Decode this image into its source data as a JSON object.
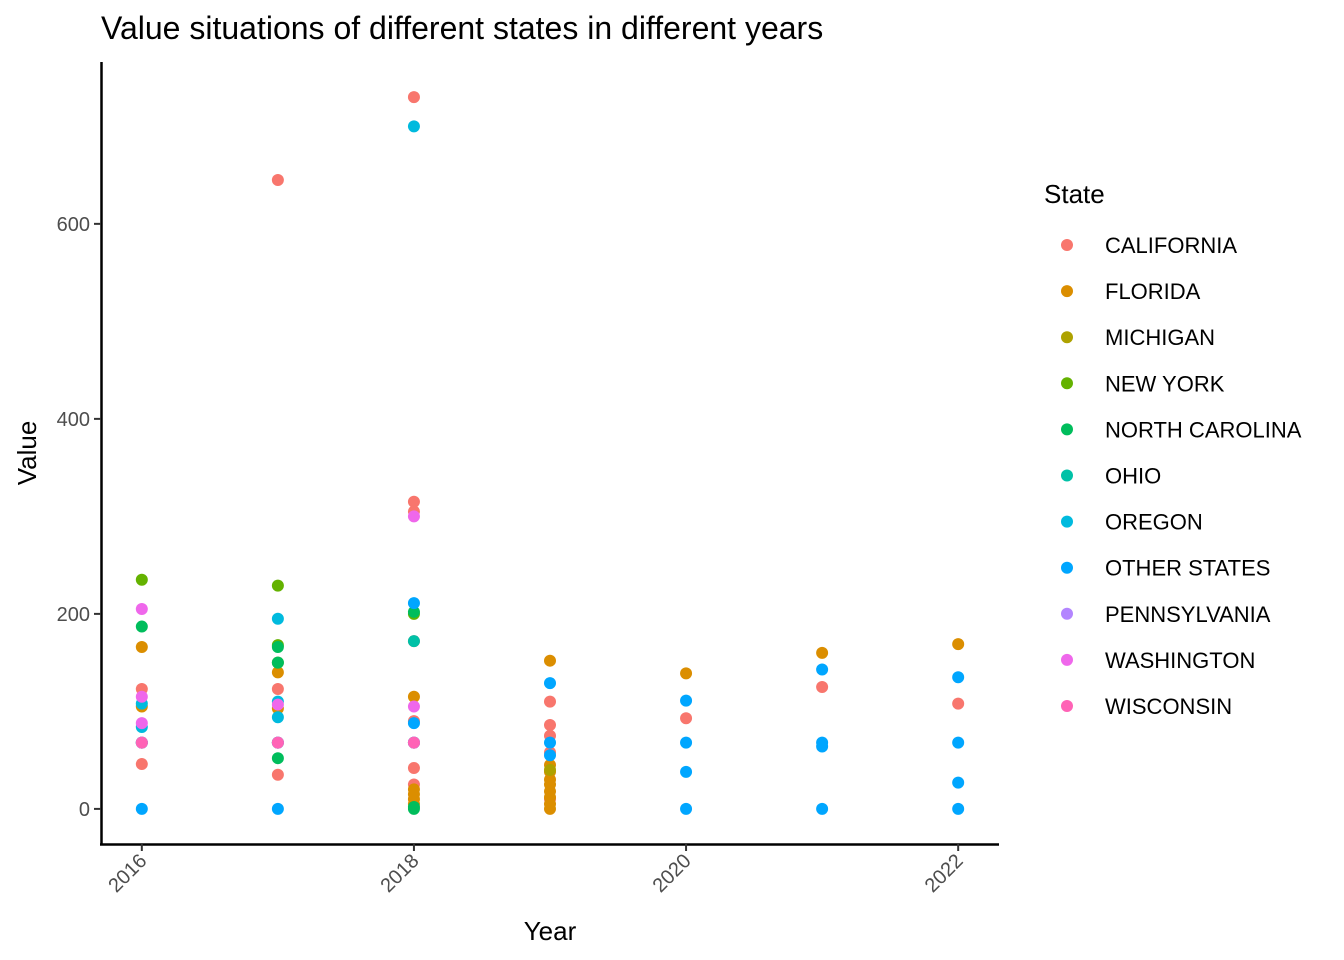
{
  "chart_data": {
    "type": "scatter",
    "title": "Value situations of different states in different years",
    "xlabel": "Year",
    "ylabel": "Value",
    "xlim": [
      2015.7,
      2022.3
    ],
    "ylim": [
      -36,
      766
    ],
    "xticks": [
      2016,
      2018,
      2020,
      2022
    ],
    "xtick_labels": [
      "2016",
      "2018",
      "2020",
      "2022"
    ],
    "yticks": [
      0,
      200,
      400,
      600
    ],
    "ytick_labels": [
      "0",
      "200",
      "400",
      "600"
    ],
    "grid": false,
    "legend": {
      "title": "State",
      "placement": "right"
    },
    "series": [
      {
        "name": "CALIFORNIA",
        "color": "#F8766D",
        "points": [
          [
            2016,
            123
          ],
          [
            2016,
            46
          ],
          [
            2017,
            645
          ],
          [
            2017,
            123
          ],
          [
            2017,
            35
          ],
          [
            2018,
            730
          ],
          [
            2018,
            315
          ],
          [
            2018,
            305
          ],
          [
            2018,
            172
          ],
          [
            2018,
            90
          ],
          [
            2018,
            42
          ],
          [
            2018,
            25
          ],
          [
            2019,
            110
          ],
          [
            2019,
            86
          ],
          [
            2019,
            75
          ],
          [
            2019,
            58
          ],
          [
            2019,
            10
          ],
          [
            2020,
            93
          ],
          [
            2021,
            125
          ],
          [
            2022,
            108
          ]
        ]
      },
      {
        "name": "FLORIDA",
        "color": "#DB8E00",
        "points": [
          [
            2016,
            166
          ],
          [
            2016,
            105
          ],
          [
            2017,
            140
          ],
          [
            2017,
            103
          ],
          [
            2018,
            115
          ],
          [
            2018,
            20
          ],
          [
            2018,
            15
          ],
          [
            2018,
            10
          ],
          [
            2018,
            5
          ],
          [
            2019,
            152
          ],
          [
            2019,
            45
          ],
          [
            2019,
            38
          ],
          [
            2019,
            30
          ],
          [
            2019,
            25
          ],
          [
            2019,
            18
          ],
          [
            2019,
            12
          ],
          [
            2019,
            5
          ],
          [
            2019,
            0
          ],
          [
            2020,
            139
          ],
          [
            2021,
            160
          ],
          [
            2022,
            169
          ]
        ]
      },
      {
        "name": "MICHIGAN",
        "color": "#AEA200",
        "points": [
          [
            2016,
            68
          ],
          [
            2017,
            68
          ],
          [
            2018,
            68
          ],
          [
            2019,
            40
          ]
        ]
      },
      {
        "name": "NEW YORK",
        "color": "#64B200",
        "points": [
          [
            2016,
            235
          ],
          [
            2017,
            229
          ],
          [
            2017,
            168
          ],
          [
            2017,
            150
          ],
          [
            2018,
            200
          ]
        ]
      },
      {
        "name": "NORTH CAROLINA",
        "color": "#00BD5C",
        "points": [
          [
            2016,
            187
          ],
          [
            2017,
            166
          ],
          [
            2017,
            150
          ],
          [
            2017,
            52
          ],
          [
            2018,
            202
          ],
          [
            2018,
            2
          ],
          [
            2018,
            0
          ]
        ]
      },
      {
        "name": "OHIO",
        "color": "#00C1A7",
        "points": [
          [
            2016,
            68
          ],
          [
            2017,
            68
          ],
          [
            2018,
            172
          ],
          [
            2018,
            68
          ]
        ]
      },
      {
        "name": "OREGON",
        "color": "#00BADE",
        "points": [
          [
            2016,
            108
          ],
          [
            2016,
            84
          ],
          [
            2017,
            195
          ],
          [
            2017,
            110
          ],
          [
            2017,
            94
          ],
          [
            2018,
            700
          ]
        ]
      },
      {
        "name": "OTHER STATES",
        "color": "#00A6FF",
        "points": [
          [
            2016,
            68
          ],
          [
            2016,
            0
          ],
          [
            2017,
            68
          ],
          [
            2017,
            0
          ],
          [
            2018,
            211
          ],
          [
            2018,
            88
          ],
          [
            2018,
            68
          ],
          [
            2019,
            129
          ],
          [
            2019,
            68
          ],
          [
            2019,
            55
          ],
          [
            2020,
            111
          ],
          [
            2020,
            68
          ],
          [
            2020,
            38
          ],
          [
            2020,
            0
          ],
          [
            2021,
            143
          ],
          [
            2021,
            68
          ],
          [
            2021,
            64
          ],
          [
            2021,
            0
          ],
          [
            2022,
            135
          ],
          [
            2022,
            68
          ],
          [
            2022,
            27
          ],
          [
            2022,
            0
          ]
        ]
      },
      {
        "name": "PENNSYLVANIA",
        "color": "#B385FF",
        "points": [
          [
            2016,
            68
          ],
          [
            2017,
            68
          ],
          [
            2018,
            68
          ]
        ]
      },
      {
        "name": "WASHINGTON",
        "color": "#EF67EB",
        "points": [
          [
            2016,
            205
          ],
          [
            2016,
            115
          ],
          [
            2016,
            88
          ],
          [
            2017,
            107
          ],
          [
            2018,
            300
          ],
          [
            2018,
            105
          ]
        ]
      },
      {
        "name": "WISCONSIN",
        "color": "#FF63B6",
        "points": [
          [
            2016,
            68
          ],
          [
            2017,
            68
          ],
          [
            2018,
            68
          ]
        ]
      }
    ]
  }
}
